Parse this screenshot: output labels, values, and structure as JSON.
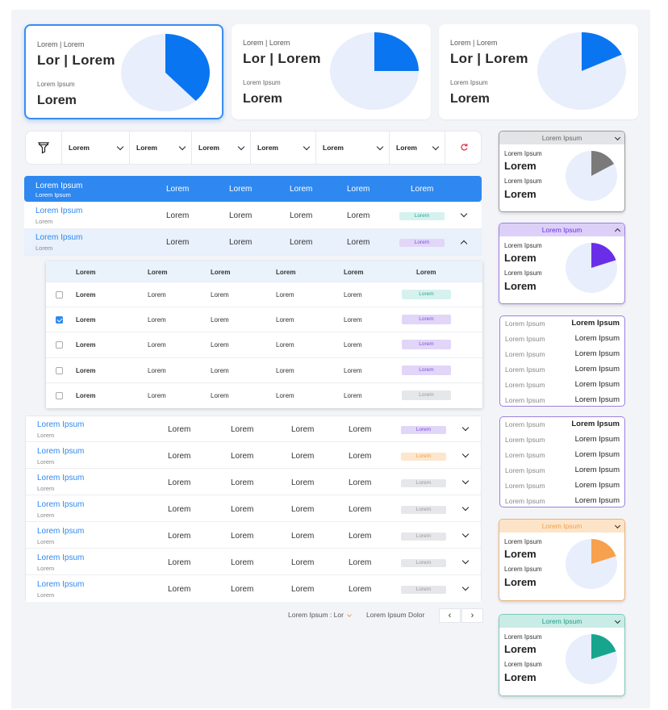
{
  "kpis": [
    {
      "label": "Lorem | Lorem",
      "title": "Lor | Lorem",
      "sub": "Lorem Ipsum",
      "value": "Lorem",
      "fraction": 0.38,
      "active": true
    },
    {
      "label": "Lorem | Lorem",
      "title": "Lor | Lorem",
      "sub": "Lorem Ipsum",
      "value": "Lorem",
      "fraction": 0.25,
      "active": false
    },
    {
      "label": "Lorem | Lorem",
      "title": "Lor | Lorem",
      "sub": "Lorem Ipsum",
      "value": "Lorem",
      "fraction": 0.18,
      "active": false
    }
  ],
  "filters": {
    "icon": "funnel-icon",
    "dropdowns": [
      "Lorem",
      "Lorem",
      "Lorem",
      "Lorem",
      "Lorem",
      "Lorem"
    ],
    "reset_icon": "refresh-icon"
  },
  "table": {
    "header": {
      "title": "Lorem Ipsum",
      "subtitle": "Lorem Ipsum",
      "columns": [
        "Lorem",
        "Lorem",
        "Lorem",
        "Lorem",
        "Lorem"
      ]
    },
    "rows": [
      {
        "title": "Lorem Ipsum",
        "sub": "Lorem",
        "cells": [
          "Lorem",
          "Lorem",
          "Lorem",
          "Lorem"
        ],
        "badge": "Lorem",
        "badge_style": "teal",
        "expanded": false
      },
      {
        "title": "Lorem Ipsum",
        "sub": "Lorem",
        "cells": [
          "Lorem",
          "Lorem",
          "Lorem",
          "Lorem"
        ],
        "badge": "Lorem",
        "badge_style": "purple",
        "expanded": true
      }
    ],
    "nested": {
      "columns": [
        "Lorem",
        "Lorem",
        "Lorem",
        "Lorem",
        "Lorem",
        "Lorem"
      ],
      "rows": [
        {
          "checked": false,
          "cells": [
            "Lorem",
            "Lorem",
            "Lorem",
            "Lorem",
            "Lorem"
          ],
          "badge": "Lorem",
          "badge_style": "teal"
        },
        {
          "checked": true,
          "cells": [
            "Lorem",
            "Lorem",
            "Lorem",
            "Lorem",
            "Lorem"
          ],
          "badge": "Lorem",
          "badge_style": "purple"
        },
        {
          "checked": false,
          "cells": [
            "Lorem",
            "Lorem",
            "Lorem",
            "Lorem",
            "Lorem"
          ],
          "badge": "Lorem",
          "badge_style": "purple"
        },
        {
          "checked": false,
          "cells": [
            "Lorem",
            "Lorem",
            "Lorem",
            "Lorem",
            "Lorem"
          ],
          "badge": "Lorem",
          "badge_style": "purple"
        },
        {
          "checked": false,
          "cells": [
            "Lorem",
            "Lorem",
            "Lorem",
            "Lorem",
            "Lorem"
          ],
          "badge": "Lorem",
          "badge_style": "gray"
        }
      ]
    },
    "lower_rows": [
      {
        "title": "Lorem Ipsum",
        "sub": "Lorem",
        "cells": [
          "Lorem",
          "Lorem",
          "Lorem",
          "Lorem"
        ],
        "badge": "Lorem",
        "badge_style": "purple"
      },
      {
        "title": "Lorem Ipsum",
        "sub": "Lorem",
        "cells": [
          "Lorem",
          "Lorem",
          "Lorem",
          "Lorem"
        ],
        "badge": "Lorem",
        "badge_style": "orange"
      },
      {
        "title": "Lorem Ipsum",
        "sub": "Lorem",
        "cells": [
          "Lorem",
          "Lorem",
          "Lorem",
          "Lorem"
        ],
        "badge": "Lorem",
        "badge_style": "gray"
      },
      {
        "title": "Lorem Ipsum",
        "sub": "Lorem",
        "cells": [
          "Lorem",
          "Lorem",
          "Lorem",
          "Lorem"
        ],
        "badge": "Lorem",
        "badge_style": "gray"
      },
      {
        "title": "Lorem Ipsum",
        "sub": "Lorem",
        "cells": [
          "Lorem",
          "Lorem",
          "Lorem",
          "Lorem"
        ],
        "badge": "Lorem",
        "badge_style": "gray"
      },
      {
        "title": "Lorem Ipsum",
        "sub": "Lorem",
        "cells": [
          "Lorem",
          "Lorem",
          "Lorem",
          "Lorem"
        ],
        "badge": "Lorem",
        "badge_style": "gray"
      },
      {
        "title": "Lorem Ipsum",
        "sub": "Lorem",
        "cells": [
          "Lorem",
          "Lorem",
          "Lorem",
          "Lorem"
        ],
        "badge": "Lorem",
        "badge_style": "gray"
      }
    ]
  },
  "pagination": {
    "per_page_label": "Lorem Ipsum : Lor",
    "range_label": "Lorem Ipsum Dolor",
    "prev": "‹",
    "next": "›"
  },
  "side_cards": [
    {
      "type": "pie",
      "header": "Lorem Ipsum",
      "label1": "Lorem Ipsum",
      "value1": "Lorem",
      "label2": "Lorem Ipsum",
      "value2": "Lorem",
      "fraction": 0.17,
      "color": "#7a7a7a",
      "header_bg": "#e3e4e6",
      "header_fg": "#666",
      "border": "#9a9a9a",
      "chevron": "down"
    },
    {
      "type": "pie",
      "header": "Lorem Ipsum",
      "label1": "Lorem Ipsum",
      "value1": "Lorem",
      "label2": "Lorem Ipsum",
      "value2": "Lorem",
      "fraction": 0.2,
      "color": "#6a2ee8",
      "header_bg": "#ddd0f8",
      "header_fg": "#6a2ee8",
      "border": "#9a7fe0",
      "chevron": "up"
    },
    {
      "type": "list",
      "rows": [
        [
          "Lorem Ipsum",
          "Lorem Ipsum"
        ],
        [
          "Lorem Ipsum",
          "Lorem Ipsum"
        ],
        [
          "Lorem Ipsum",
          "Lorem Ipsum"
        ],
        [
          "Lorem Ipsum",
          "Lorem Ipsum"
        ],
        [
          "Lorem Ipsum",
          "Lorem Ipsum"
        ],
        [
          "Lorem Ipsum",
          "Lorem Ipsum"
        ]
      ]
    },
    {
      "type": "list",
      "rows": [
        [
          "Lorem Ipsum",
          "Lorem Ipsum"
        ],
        [
          "Lorem Ipsum",
          "Lorem Ipsum"
        ],
        [
          "Lorem Ipsum",
          "Lorem Ipsum"
        ],
        [
          "Lorem Ipsum",
          "Lorem Ipsum"
        ],
        [
          "Lorem Ipsum",
          "Lorem Ipsum"
        ],
        [
          "Lorem Ipsum",
          "Lorem Ipsum"
        ]
      ]
    },
    {
      "type": "pie",
      "header": "Lorem Ipsum",
      "label1": "Lorem Ipsum",
      "value1": "Lorem",
      "label2": "Lorem Ipsum",
      "value2": "Lorem",
      "fraction": 0.2,
      "color": "#f7a04d",
      "header_bg": "#fde4c8",
      "header_fg": "#f0a04a",
      "border": "#e8b27a",
      "chevron": "down"
    },
    {
      "type": "pie",
      "header": "Lorem Ipsum",
      "label1": "Lorem Ipsum",
      "value1": "Lorem",
      "label2": "Lorem Ipsum",
      "value2": "Lorem",
      "fraction": 0.2,
      "color": "#17a58e",
      "header_bg": "#c9ede6",
      "header_fg": "#1f9c87",
      "border": "#7cc9bb",
      "chevron": "down"
    }
  ],
  "colors": {
    "primary": "#2e88f0",
    "pie_base": "#e8eefb",
    "pie_blue": "#0a75f0"
  }
}
